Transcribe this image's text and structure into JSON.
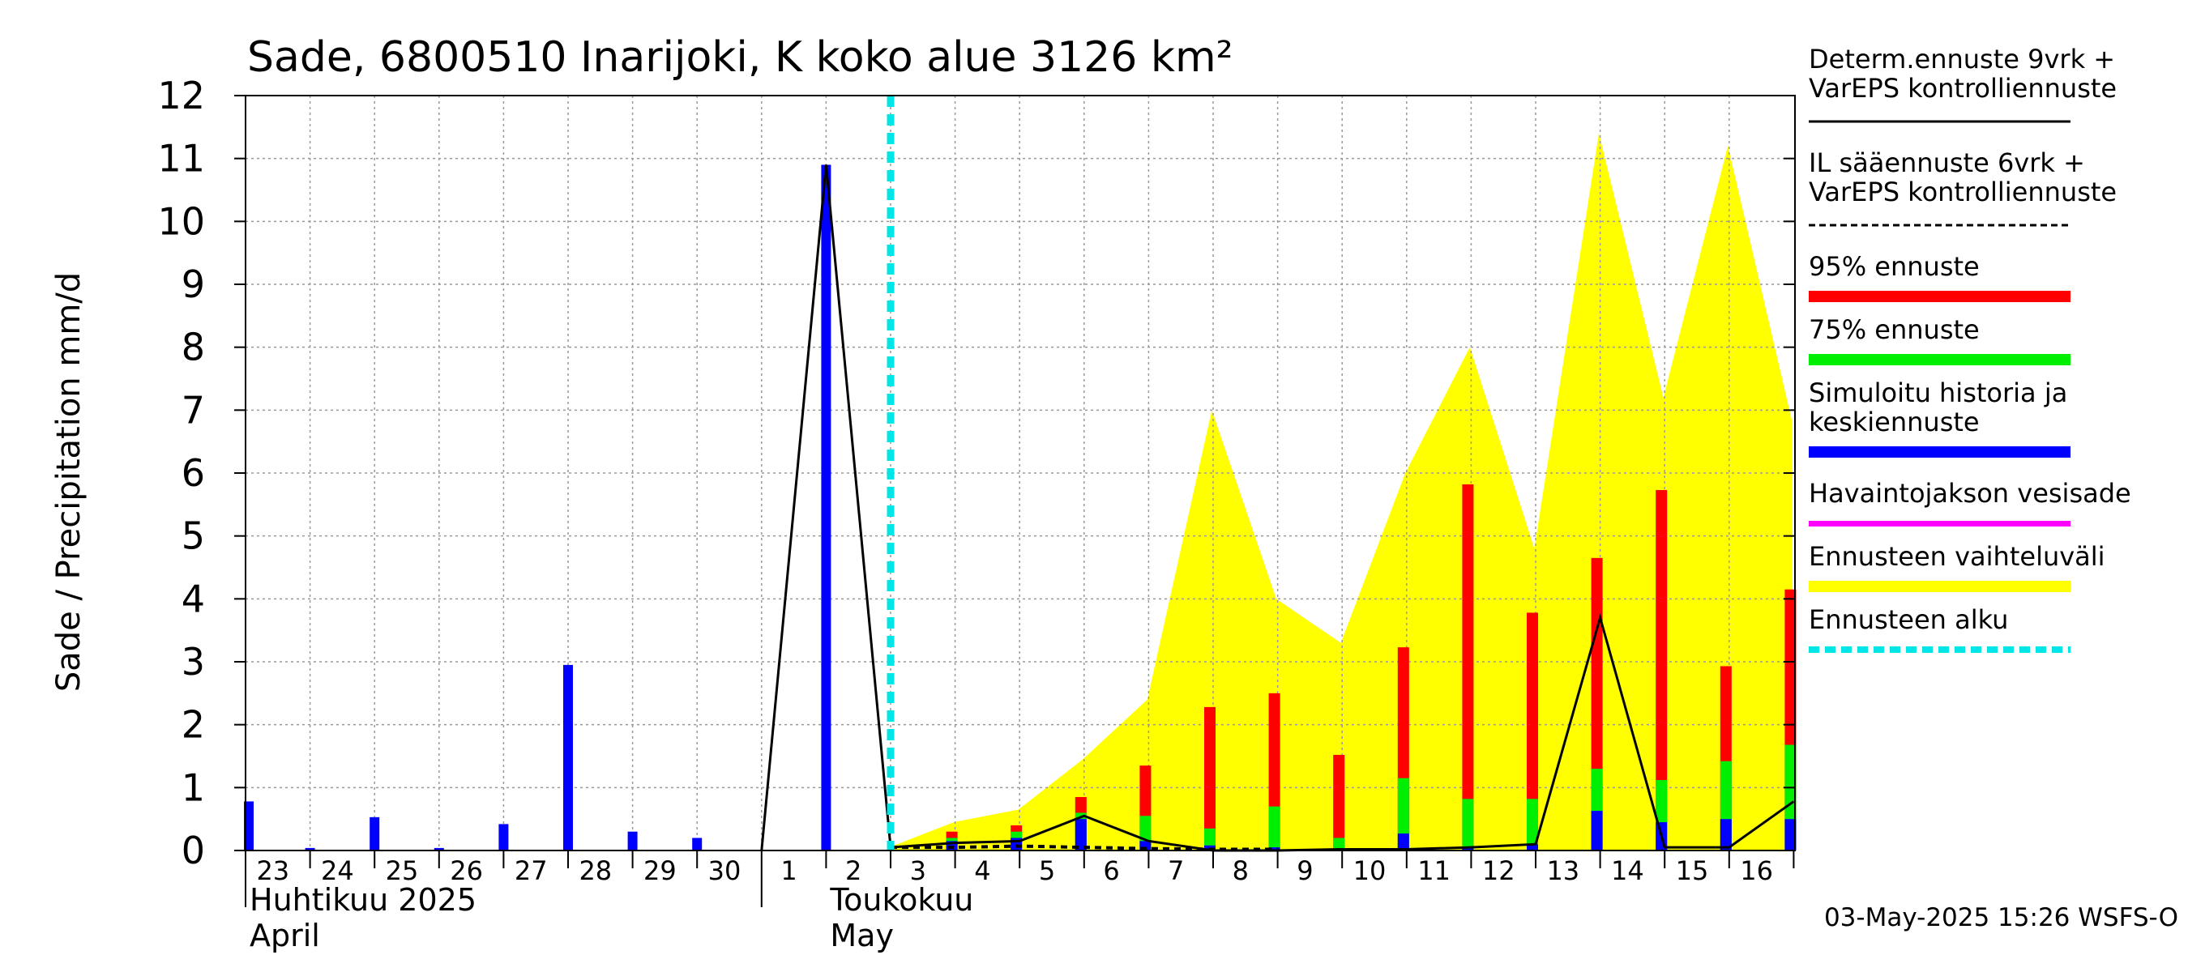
{
  "chart_data": {
    "type": "bar",
    "title": "Sade, 6800510 Inarijoki, K koko alue 3126 km²",
    "ylabel": "Sade / Precipitation   mm/d",
    "ylim": [
      0,
      12
    ],
    "yticks": [
      0,
      1,
      2,
      3,
      4,
      5,
      6,
      7,
      8,
      9,
      10,
      11,
      12
    ],
    "x_days": [
      "23",
      "24",
      "25",
      "26",
      "27",
      "28",
      "29",
      "30",
      "1",
      "2",
      "3",
      "4",
      "5",
      "6",
      "7",
      "8",
      "9",
      "10",
      "11",
      "12",
      "13",
      "14",
      "15",
      "16"
    ],
    "month_labels": [
      {
        "line1": "Huhtikuu  2025",
        "line2": "April",
        "at_day": 0
      },
      {
        "line1": "Toukokuu",
        "line2": "May",
        "at_day": 9
      }
    ],
    "forecast_start_day": 10,
    "history_bars": [
      0.78,
      0.04,
      0.53,
      0.04,
      0.42,
      2.95,
      0.3,
      0.2,
      0.0,
      10.9
    ],
    "forecast_bars": {
      "days": [
        11,
        12,
        13,
        14,
        15,
        16,
        17,
        18,
        19,
        20,
        21,
        22,
        23,
        24
      ],
      "p95": [
        0.3,
        0.4,
        0.85,
        1.35,
        2.28,
        2.5,
        1.52,
        3.23,
        5.82,
        3.78,
        4.65,
        5.73,
        2.93,
        4.15
      ],
      "p75": [
        0.2,
        0.3,
        0.6,
        0.55,
        0.35,
        0.7,
        0.2,
        1.15,
        0.82,
        0.82,
        1.3,
        1.12,
        1.42,
        1.68
      ],
      "mean": [
        0.15,
        0.2,
        0.5,
        0.15,
        0.08,
        0.05,
        0.03,
        0.27,
        0.05,
        0.1,
        0.63,
        0.45,
        0.5,
        0.5
      ]
    },
    "range_band": {
      "x": [
        9.98,
        10.98,
        11.98,
        12.98,
        13.98,
        14.98,
        15.98,
        16.98,
        17.98,
        18.98,
        19.98,
        20.98,
        21.98,
        22.98,
        23.98
      ],
      "upper": [
        0.05,
        0.45,
        0.65,
        1.45,
        2.4,
        7.0,
        4.0,
        3.3,
        6.0,
        8.0,
        4.8,
        11.4,
        7.2,
        11.2,
        6.8
      ]
    },
    "deterministic_line": {
      "x": [
        8.0,
        9.0,
        10.0,
        11.0,
        12.0,
        13.0,
        14.0,
        15.0,
        16.0,
        17.0,
        18.0,
        19.0,
        20.0,
        21.0,
        22.0,
        23.0,
        24.0
      ],
      "y": [
        0.0,
        10.9,
        0.05,
        0.12,
        0.15,
        0.55,
        0.15,
        0.0,
        0.0,
        0.02,
        0.02,
        0.05,
        0.1,
        3.7,
        0.05,
        0.05,
        0.78
      ]
    },
    "il_dashed_line": {
      "x": [
        10.0,
        11.0,
        12.0,
        13.0,
        14.0,
        15.0,
        16.0
      ],
      "y": [
        0.05,
        0.05,
        0.07,
        0.05,
        0.03,
        0.02,
        0.02
      ]
    },
    "colors": {
      "history": "#0000ff",
      "p95": "#ff0000",
      "p75": "#00ee00",
      "range": "#ffff00",
      "forecast_start": "#00e5e5",
      "observed": "#ff00ff",
      "line": "#000000",
      "grid": "#999999"
    }
  },
  "legend": {
    "items": [
      {
        "lines": [
          "Determ.ennuste 9vrk +",
          "VarEPS kontrolliennuste"
        ],
        "swatch": "solid-line"
      },
      {
        "lines": [
          "IL sääennuste 6vrk  +",
          "  VarEPS kontrolliennuste"
        ],
        "swatch": "dashed-line"
      },
      {
        "lines": [
          "95% ennuste"
        ],
        "swatch": "red-bar"
      },
      {
        "lines": [
          "75% ennuste"
        ],
        "swatch": "green-bar"
      },
      {
        "lines": [
          "Simuloitu historia ja",
          "keskiennuste"
        ],
        "swatch": "blue-bar"
      },
      {
        "lines": [
          "Havaintojakson vesisade"
        ],
        "swatch": "magenta-bar"
      },
      {
        "lines": [
          "Ennusteen vaihteluväli"
        ],
        "swatch": "yellow-bar"
      },
      {
        "lines": [
          "Ennusteen alku"
        ],
        "swatch": "cyan-dashed"
      }
    ]
  },
  "footer": {
    "timestamp": "03-May-2025 15:26 WSFS-O"
  }
}
